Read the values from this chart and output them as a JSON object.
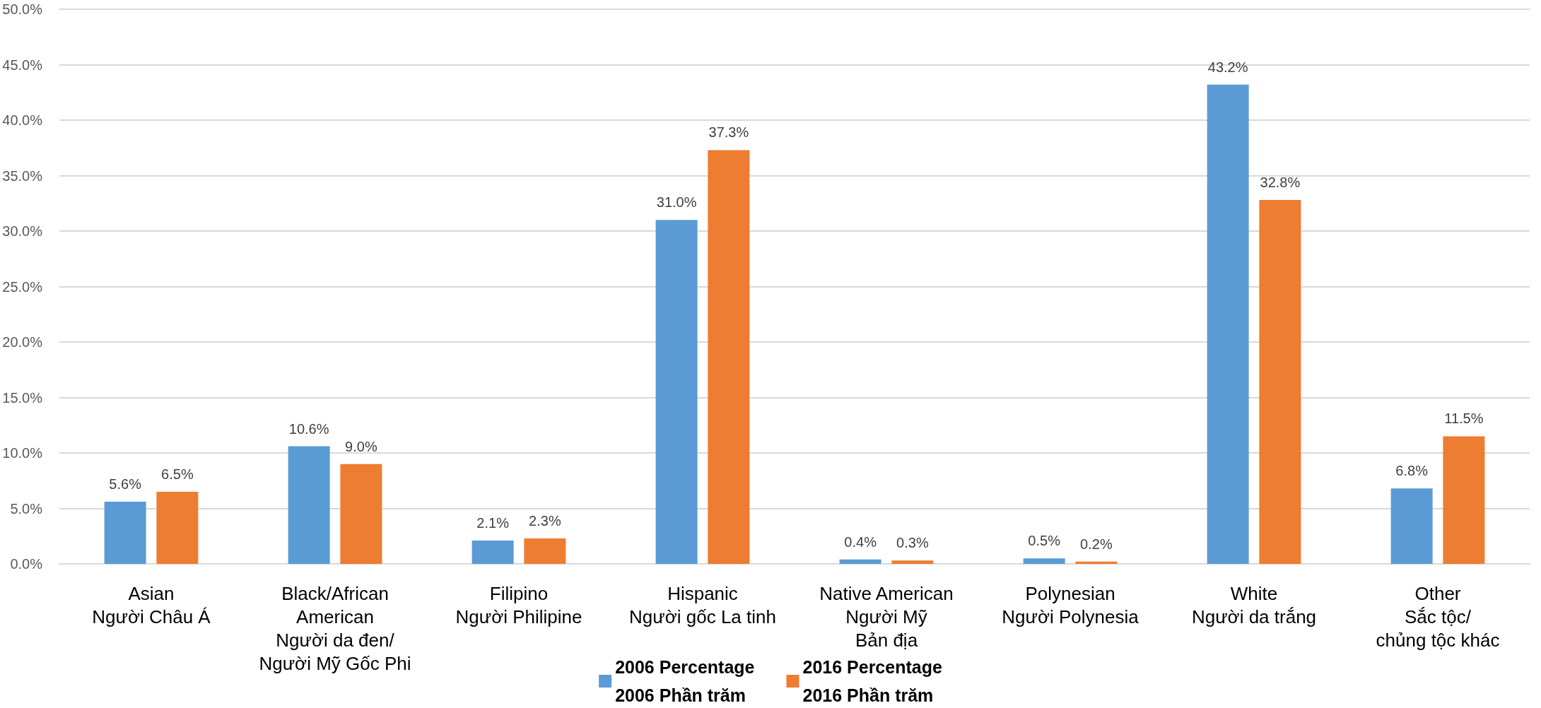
{
  "chart_data": {
    "type": "bar",
    "categories": [
      "Asian\nNgười Châu Á",
      "Black/African\nAmerican\nNgười da đen/\nNgười Mỹ Gốc Phi",
      "Filipino\nNgười Philipine",
      "Hispanic\nNgười gốc La tinh",
      "Native American\nNgười Mỹ\nBản địa",
      "Polynesian\nNgười Polynesia",
      "White\nNgười da trắng",
      "Other\nSắc tộc/\nchủng tộc khác"
    ],
    "series": [
      {
        "name": "2006 Percentage\n2006 Phần trăm",
        "color": "#5b9bd5",
        "values": [
          5.6,
          10.6,
          2.1,
          31.0,
          0.4,
          0.5,
          43.2,
          6.8
        ],
        "value_labels": [
          "5.6%",
          "10.6%",
          "2.1%",
          "31.0%",
          "0.4%",
          "0.5%",
          "43.2%",
          "6.8%"
        ]
      },
      {
        "name": "2016 Percentage\n2016 Phần trăm",
        "color": "#ed7d31",
        "values": [
          6.5,
          9.0,
          2.3,
          37.3,
          0.3,
          0.2,
          32.8,
          11.5
        ],
        "value_labels": [
          "6.5%",
          "9.0%",
          "2.3%",
          "37.3%",
          "0.3%",
          "0.2%",
          "32.8%",
          "11.5%"
        ]
      }
    ],
    "ylim": [
      0,
      50
    ],
    "yticks": [
      {
        "value": 0,
        "label": "0.0%"
      },
      {
        "value": 5,
        "label": "5.0%"
      },
      {
        "value": 10,
        "label": "10.0%"
      },
      {
        "value": 15,
        "label": "15.0%"
      },
      {
        "value": 20,
        "label": "20.0%"
      },
      {
        "value": 25,
        "label": "25.0%"
      },
      {
        "value": 30,
        "label": "30.0%"
      },
      {
        "value": 35,
        "label": "35.0%"
      },
      {
        "value": 40,
        "label": "40.0%"
      },
      {
        "value": 45,
        "label": "45.0%"
      },
      {
        "value": 50,
        "label": "50.0%"
      }
    ],
    "grid": "y",
    "legend": "bottom"
  }
}
